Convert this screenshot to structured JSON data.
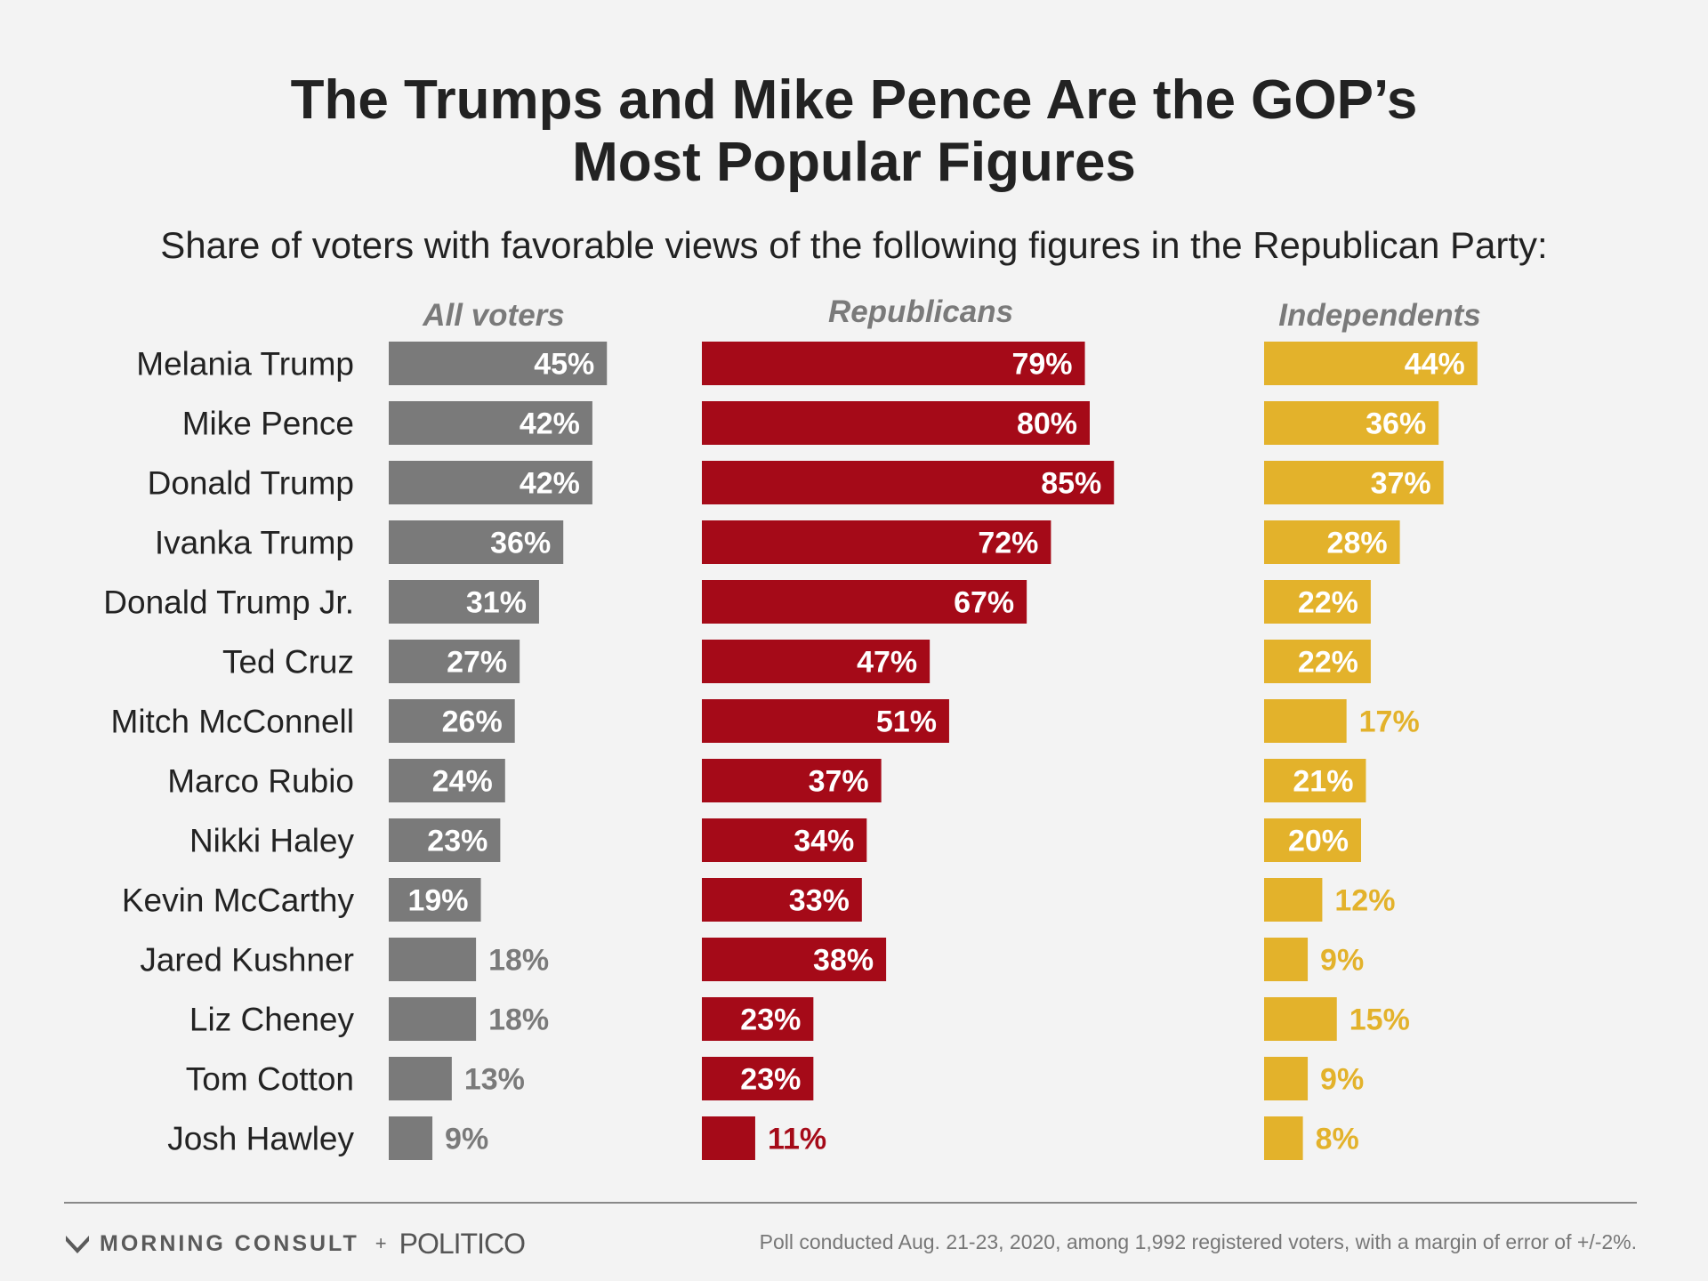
{
  "title_line1": "The Trumps and Mike Pence Are the GOP’s",
  "title_line2": "Most Popular Figures",
  "subtitle": "Share of voters with favorable views of the following figures in the Republican Party:",
  "colors": {
    "all": "#7a7a7a",
    "rep": "#a50a18",
    "ind": "#e3b22b",
    "text_inside": "#ffffff"
  },
  "footer": {
    "brand1": "MORNING CONSULT",
    "plus": "+",
    "brand2": "POLITICO",
    "note": "Poll conducted Aug. 21-23, 2020, among 1,992 registered voters, with a margin of error of +/-2%."
  },
  "chart_data": {
    "type": "bar",
    "orientation": "horizontal",
    "categories": [
      "Melania Trump",
      "Mike Pence",
      "Donald Trump",
      "Ivanka Trump",
      "Donald Trump Jr.",
      "Ted Cruz",
      "Mitch McConnell",
      "Marco Rubio",
      "Nikki Haley",
      "Kevin McCarthy",
      "Jared Kushner",
      "Liz Cheney",
      "Tom Cotton",
      "Josh Hawley"
    ],
    "series": [
      {
        "name": "All voters",
        "color": "#7a7a7a",
        "values": [
          45,
          42,
          42,
          36,
          31,
          27,
          26,
          24,
          23,
          19,
          18,
          18,
          13,
          9
        ]
      },
      {
        "name": "Republicans",
        "color": "#a50a18",
        "values": [
          79,
          80,
          85,
          72,
          67,
          47,
          51,
          37,
          34,
          33,
          38,
          23,
          23,
          11
        ]
      },
      {
        "name": "Independents",
        "color": "#e3b22b",
        "values": [
          44,
          36,
          37,
          28,
          22,
          22,
          17,
          21,
          20,
          12,
          9,
          15,
          9,
          8
        ]
      }
    ],
    "value_suffix": "%",
    "title": "The Trumps and Mike Pence Are the GOP’s Most Popular Figures",
    "subtitle": "Share of voters with favorable views of the following figures in the Republican Party:",
    "grid": false,
    "legend": "panel titles above each column"
  }
}
